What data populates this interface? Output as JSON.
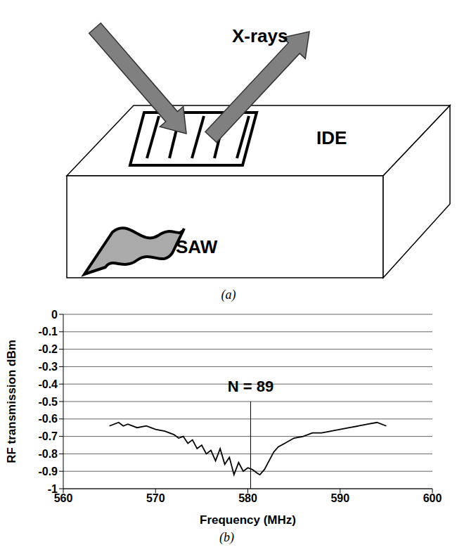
{
  "figure": {
    "panel_a": {
      "label": "(a)",
      "xrays": "X-rays",
      "ide": "IDE",
      "saw": "SAW"
    },
    "panel_b": {
      "label": "(b)"
    }
  },
  "chart_data": {
    "type": "line",
    "x_label": "Frequency (MHz)",
    "y_label": "RF transmission   dBm",
    "annotations": [
      "N = 89"
    ],
    "marker_line": {
      "x": 580.3,
      "y": [
        -1,
        -0.5
      ]
    },
    "x": [
      565,
      565.5,
      566,
      566.5,
      567,
      568,
      569,
      570,
      571,
      572,
      572.5,
      573,
      573.5,
      574,
      574.5,
      575,
      575.5,
      576,
      576.5,
      577,
      577.5,
      578,
      578.5,
      579,
      579.5,
      580,
      580.5,
      581,
      581.3,
      581.8,
      582.3,
      582.8,
      583.3,
      584,
      585,
      586,
      587,
      588,
      589,
      590,
      591,
      592,
      593,
      594,
      595
    ],
    "values": [
      -0.64,
      -0.63,
      -0.62,
      -0.64,
      -0.63,
      -0.65,
      -0.64,
      -0.66,
      -0.67,
      -0.69,
      -0.71,
      -0.7,
      -0.74,
      -0.72,
      -0.77,
      -0.75,
      -0.8,
      -0.78,
      -0.84,
      -0.77,
      -0.86,
      -0.82,
      -0.92,
      -0.85,
      -0.9,
      -0.88,
      -0.89,
      -0.91,
      -0.92,
      -0.89,
      -0.84,
      -0.79,
      -0.76,
      -0.74,
      -0.71,
      -0.7,
      -0.68,
      -0.68,
      -0.67,
      -0.66,
      -0.65,
      -0.64,
      -0.63,
      -0.62,
      -0.64
    ],
    "color": "#000000",
    "xlim": [
      560,
      600
    ],
    "xticks": [
      560,
      570,
      580,
      590,
      600
    ],
    "ylim": [
      -1,
      0
    ],
    "yticks": [
      0,
      -0.1,
      -0.2,
      -0.3,
      -0.4,
      -0.5,
      -0.6,
      -0.7,
      -0.8,
      -0.9,
      -1
    ],
    "grid": true
  }
}
